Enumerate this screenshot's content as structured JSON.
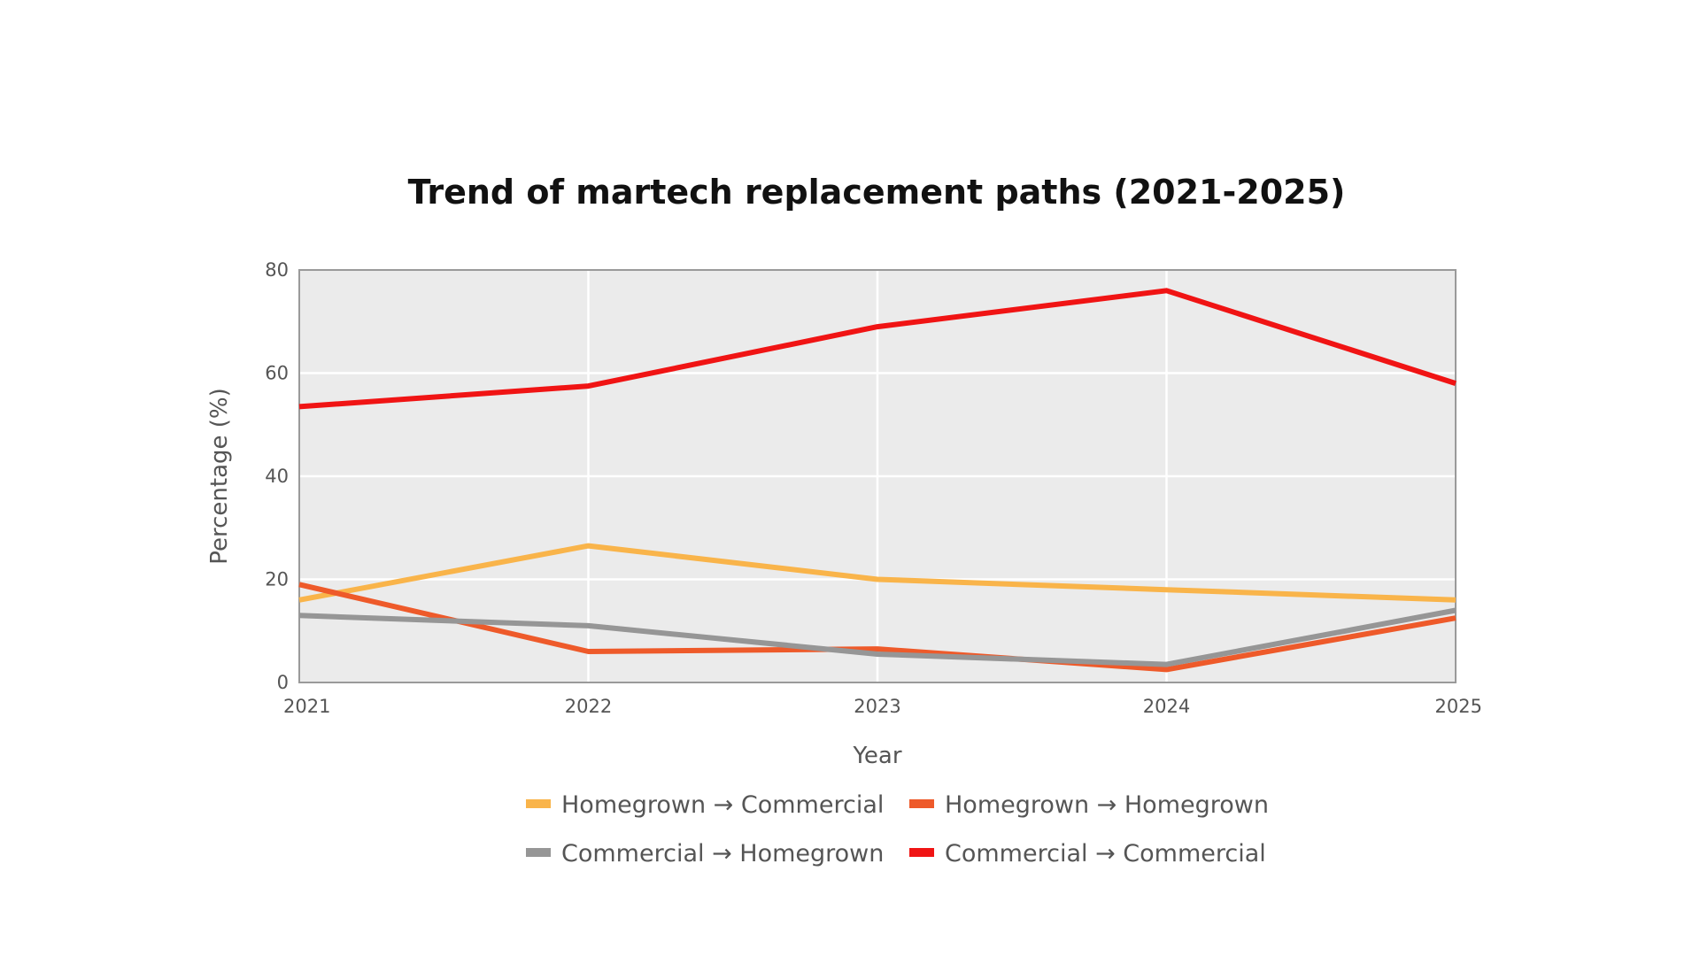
{
  "chart_data": {
    "type": "line",
    "title": "Trend of martech replacement paths (2021-2025)",
    "xlabel": "Year",
    "ylabel": "Percentage (%)",
    "x": [
      "2021",
      "2022",
      "2023",
      "2024",
      "2025"
    ],
    "ylim": [
      0,
      80
    ],
    "yticks": [
      "0",
      "20",
      "40",
      "60",
      "80"
    ],
    "grid": true,
    "legend_position": "bottom",
    "plot_background": "#ebebeb",
    "series": [
      {
        "name": "Homegrown → Commercial",
        "color": "#f9b44a",
        "values": [
          16,
          26.5,
          20,
          18,
          16
        ]
      },
      {
        "name": "Homegrown → Homegrown",
        "color": "#ee5a2a",
        "values": [
          19,
          6,
          6.5,
          2.5,
          12.5
        ]
      },
      {
        "name": "Commercial → Homegrown",
        "color": "#969696",
        "values": [
          13,
          11,
          5.5,
          3.5,
          14
        ]
      },
      {
        "name": "Commercial → Commercial",
        "color": "#f01414",
        "values": [
          53.5,
          57.5,
          69,
          76,
          58
        ]
      }
    ]
  }
}
